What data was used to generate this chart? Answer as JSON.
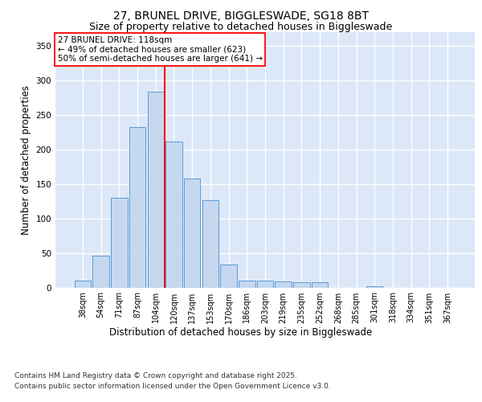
{
  "title_line1": "27, BRUNEL DRIVE, BIGGLESWADE, SG18 8BT",
  "title_line2": "Size of property relative to detached houses in Biggleswade",
  "xlabel": "Distribution of detached houses by size in Biggleswade",
  "ylabel": "Number of detached properties",
  "categories": [
    "38sqm",
    "54sqm",
    "71sqm",
    "87sqm",
    "104sqm",
    "120sqm",
    "137sqm",
    "153sqm",
    "170sqm",
    "186sqm",
    "203sqm",
    "219sqm",
    "235sqm",
    "252sqm",
    "268sqm",
    "285sqm",
    "301sqm",
    "318sqm",
    "334sqm",
    "351sqm",
    "367sqm"
  ],
  "values": [
    10,
    46,
    130,
    233,
    284,
    211,
    158,
    126,
    33,
    10,
    10,
    9,
    7,
    7,
    0,
    0,
    2,
    0,
    0,
    0,
    0
  ],
  "bar_color": "#c5d8f0",
  "bar_edge_color": "#5b9bd5",
  "vline_x": 4.5,
  "vline_color": "red",
  "annotation_text": "27 BRUNEL DRIVE: 118sqm\n← 49% of detached houses are smaller (623)\n50% of semi-detached houses are larger (641) →",
  "annotation_box_color": "white",
  "annotation_box_edge_color": "red",
  "ylim": [
    0,
    370
  ],
  "yticks": [
    0,
    50,
    100,
    150,
    200,
    250,
    300,
    350
  ],
  "footnote1": "Contains HM Land Registry data © Crown copyright and database right 2025.",
  "footnote2": "Contains public sector information licensed under the Open Government Licence v3.0.",
  "background_color": "#dce8f8",
  "grid_color": "white",
  "title_fontsize": 10,
  "subtitle_fontsize": 9,
  "tick_fontsize": 7,
  "label_fontsize": 8.5,
  "annotation_fontsize": 7.5,
  "footnote_fontsize": 6.5
}
